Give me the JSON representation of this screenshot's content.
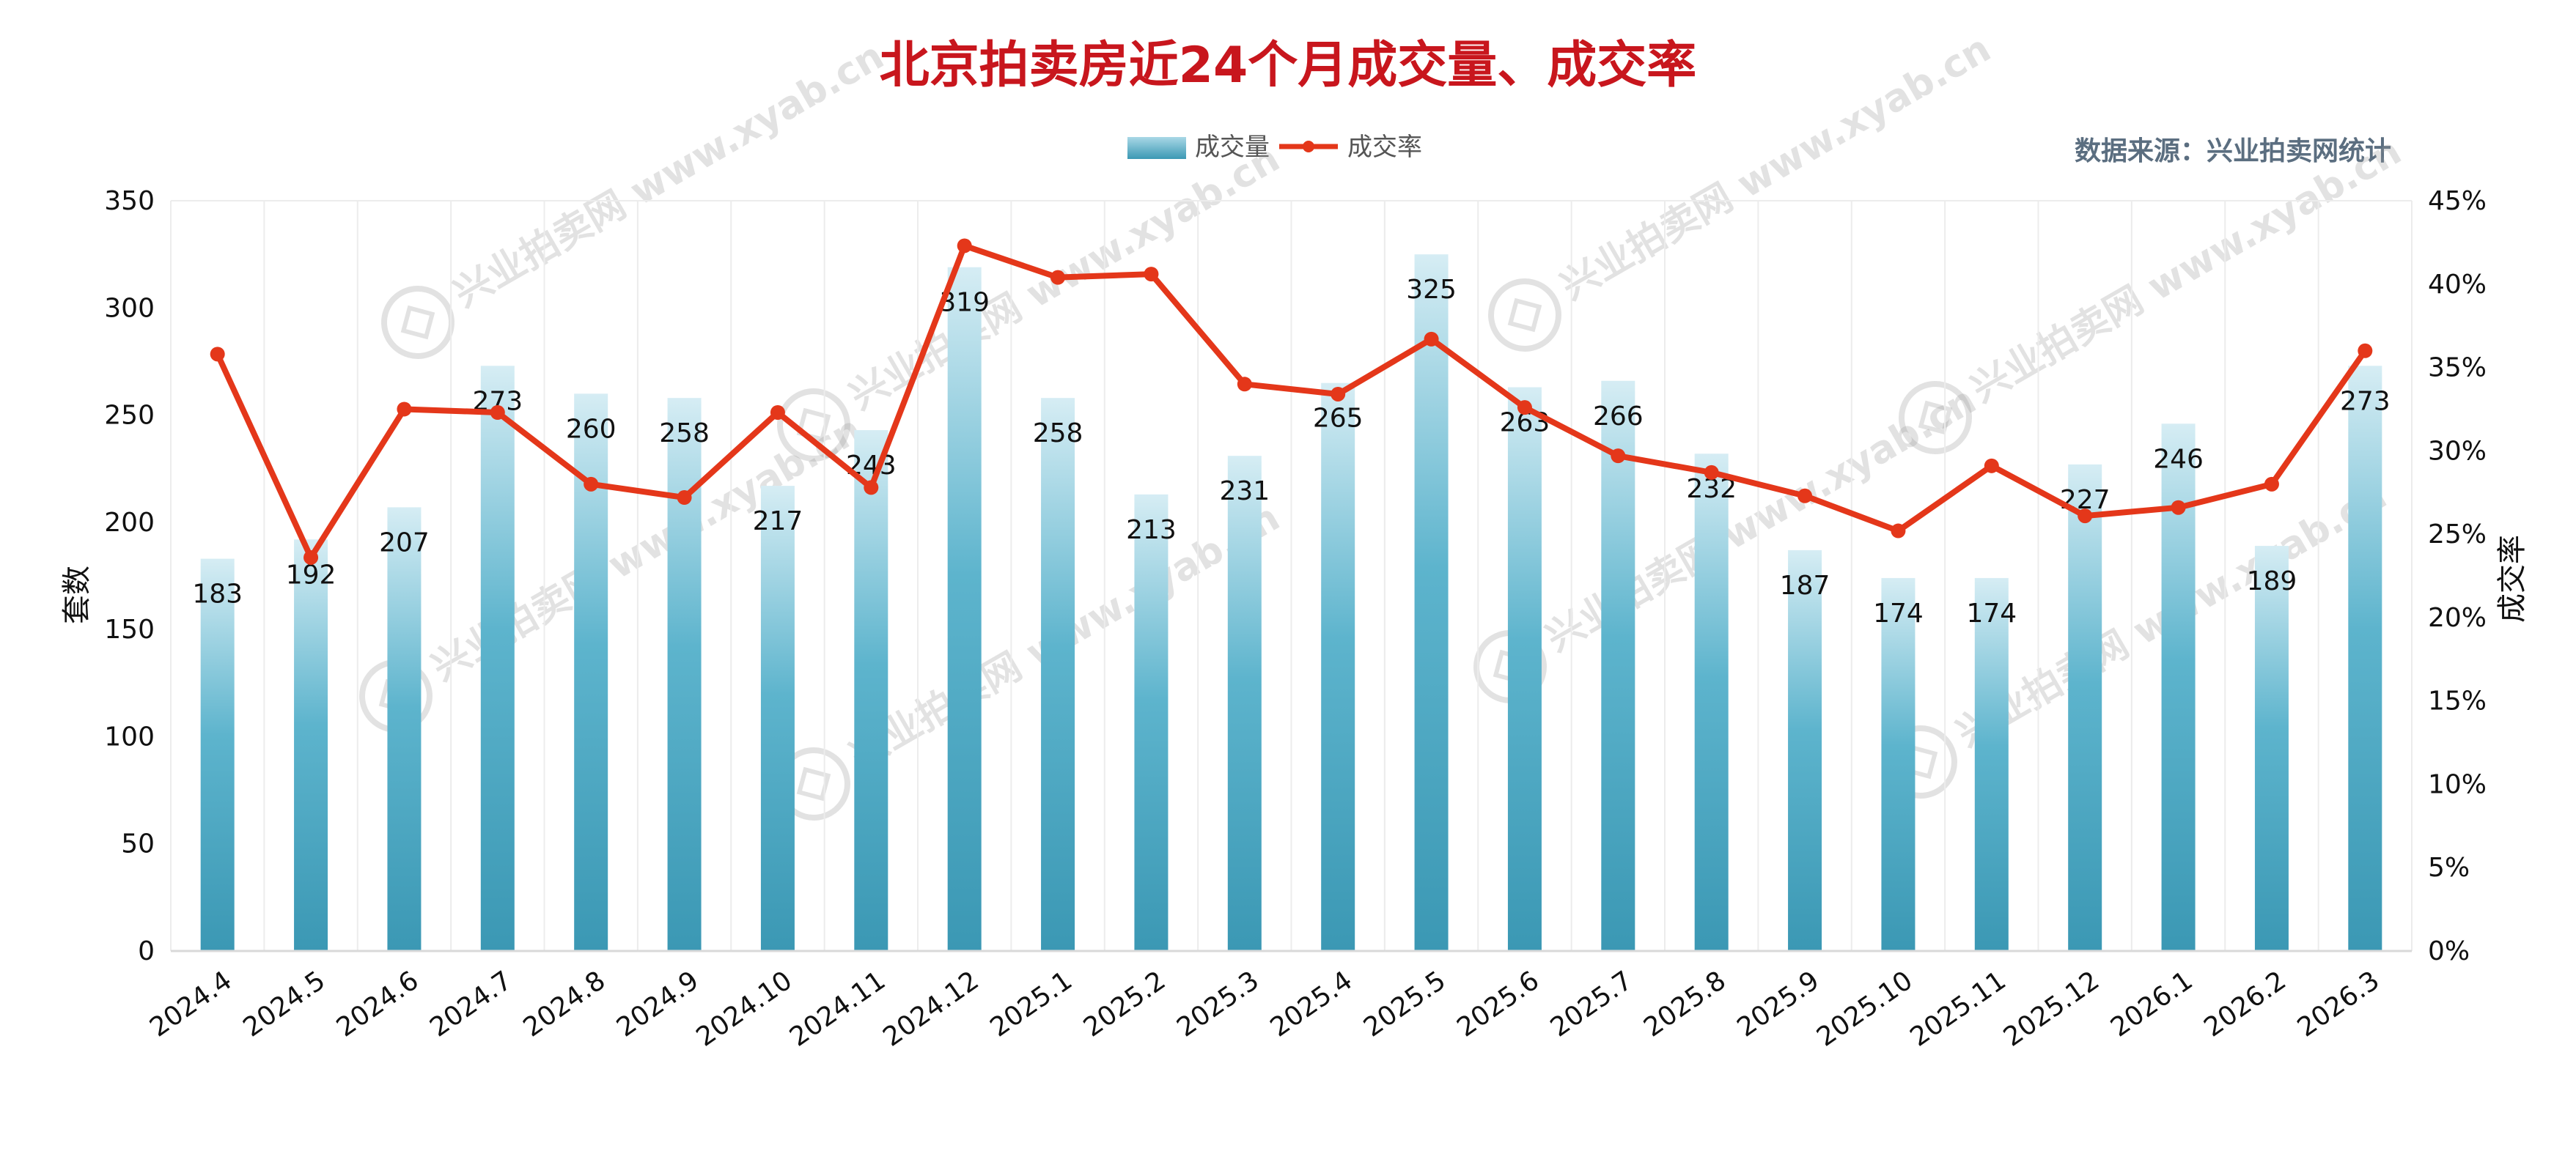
{
  "chart_data": {
    "type": "bar+line",
    "title": "北京拍卖房近24个月成交量、成交率",
    "source": "数据来源：兴业拍卖网统计",
    "watermark": "兴业拍卖网 www.xyab.cn",
    "ylabel_left": "套数",
    "ylabel_right": "成交率",
    "ylim_left": [
      0,
      350
    ],
    "ylim_right": [
      0,
      45
    ],
    "left_ticks": [
      "0",
      "50",
      "100",
      "150",
      "200",
      "250",
      "300",
      "350"
    ],
    "right_ticks": [
      "0%",
      "5%",
      "10%",
      "15%",
      "20%",
      "25%",
      "30%",
      "35%",
      "40%",
      "45%"
    ],
    "legend_position": "top-center",
    "grid": "vertical",
    "categories": [
      "2024.4",
      "2024.5",
      "2024.6",
      "2024.7",
      "2024.8",
      "2024.9",
      "2024.10",
      "2024.11",
      "2024.12",
      "2025.1",
      "2025.2",
      "2025.3",
      "2025.4",
      "2025.5",
      "2025.6",
      "2025.7",
      "2025.8",
      "2025.9",
      "2025.10",
      "2025.11",
      "2025.12",
      "2026.1",
      "2026.2",
      "2026.3"
    ],
    "series": [
      {
        "name": "成交量",
        "type": "bar",
        "axis": "left",
        "color": "#4aa8c4",
        "values": [
          183,
          192,
          207,
          273,
          260,
          258,
          217,
          243,
          319,
          258,
          213,
          231,
          265,
          325,
          263,
          266,
          232,
          187,
          174,
          174,
          227,
          246,
          189,
          273
        ]
      },
      {
        "name": "成交率",
        "type": "line",
        "axis": "right",
        "color": "#e4371a",
        "values": [
          35.8,
          23.6,
          32.5,
          32.3,
          28.0,
          27.2,
          32.3,
          27.8,
          42.3,
          40.4,
          40.6,
          34.0,
          33.4,
          36.7,
          32.6,
          29.7,
          28.7,
          27.3,
          25.2,
          29.1,
          26.1,
          26.6,
          28.0,
          36.0
        ]
      }
    ]
  }
}
